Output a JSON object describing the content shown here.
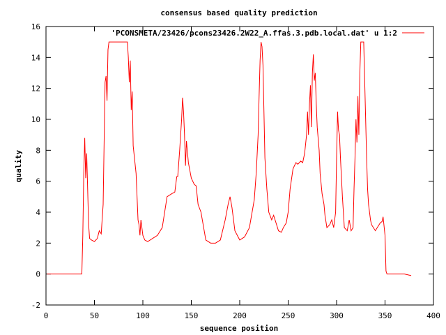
{
  "chart_data": {
    "type": "line",
    "title": "consensus based quality prediction",
    "xlabel": "sequence position",
    "ylabel": "quality",
    "xlim": [
      0,
      400
    ],
    "ylim": [
      -2,
      16
    ],
    "x_ticks": [
      0,
      50,
      100,
      150,
      200,
      250,
      300,
      350,
      400
    ],
    "y_ticks": [
      -2,
      0,
      2,
      4,
      6,
      8,
      10,
      12,
      14,
      16
    ],
    "grid": false,
    "legend_position": "top-right",
    "series": [
      {
        "name": "'PCONSMETA/23426/pcons23426.2W22_A.ffas.3.pdb.local.dat' u 1:2",
        "color": "#ff0000",
        "x": [
          1,
          37,
          38,
          39,
          40,
          41,
          42,
          43,
          44,
          45,
          47,
          50,
          53,
          55,
          57,
          59,
          60,
          61,
          62,
          63,
          64,
          65,
          66,
          67,
          70,
          75,
          80,
          84,
          85,
          86,
          87,
          88,
          89,
          90,
          93,
          95,
          96,
          97,
          98,
          100,
          102,
          105,
          110,
          115,
          120,
          125,
          130,
          133,
          135,
          136,
          138,
          140,
          141,
          142,
          143,
          144,
          145,
          147,
          150,
          153,
          155,
          157,
          160,
          165,
          170,
          175,
          180,
          185,
          188,
          190,
          192,
          195,
          200,
          205,
          210,
          215,
          217,
          219,
          220,
          221,
          222,
          223,
          224,
          225,
          226,
          228,
          230,
          233,
          235,
          238,
          240,
          243,
          245,
          248,
          250,
          252,
          255,
          258,
          260,
          263,
          265,
          267,
          269,
          270,
          271,
          272,
          273,
          274,
          275,
          276,
          277,
          278,
          279,
          280,
          282,
          283,
          285,
          287,
          288,
          290,
          293,
          295,
          297,
          299,
          300,
          301,
          302,
          303,
          304,
          306,
          308,
          311,
          313,
          315,
          317,
          318,
          319,
          320,
          321,
          322,
          323,
          324,
          325,
          326,
          327,
          328,
          329,
          330,
          331,
          332,
          333,
          335,
          336,
          338,
          340,
          342,
          345,
          347,
          348,
          350,
          351,
          352,
          353,
          360,
          370,
          377
        ],
        "y": [
          0,
          0,
          2.5,
          6.5,
          8.8,
          6.2,
          7.8,
          5.5,
          3.2,
          2.3,
          2.2,
          2.1,
          2.3,
          2.8,
          2.6,
          4.5,
          8.5,
          12.4,
          12.8,
          11.2,
          14.5,
          15,
          15,
          15,
          15,
          15,
          15,
          15,
          14,
          12.4,
          13.8,
          10.6,
          11.8,
          8.3,
          6.5,
          3.5,
          3.2,
          2.5,
          3.5,
          2.5,
          2.2,
          2.1,
          2.3,
          2.5,
          3.0,
          5.0,
          5.2,
          5.3,
          6.3,
          6.3,
          8.0,
          10.0,
          11.4,
          10.5,
          9.0,
          7.0,
          8.6,
          7.2,
          6.2,
          5.8,
          5.7,
          4.5,
          4.0,
          2.2,
          2.0,
          2.0,
          2.2,
          3.5,
          4.5,
          5.0,
          4.3,
          2.8,
          2.2,
          2.4,
          3.0,
          4.8,
          6.5,
          9.0,
          11.5,
          13.8,
          15,
          14.7,
          13.5,
          10.5,
          7.5,
          5.5,
          4.0,
          3.5,
          3.8,
          3.2,
          2.8,
          2.7,
          3.0,
          3.3,
          4.0,
          5.5,
          6.8,
          7.2,
          7.1,
          7.3,
          7.2,
          7.8,
          9.0,
          10.5,
          9.0,
          11.0,
          12.2,
          9.5,
          13.0,
          14.2,
          12.5,
          13.0,
          11.0,
          9.5,
          8.0,
          6.5,
          5.2,
          4.5,
          3.8,
          3.0,
          3.2,
          3.5,
          3.0,
          4.0,
          7.5,
          10.5,
          9.3,
          9.0,
          7.5,
          5.0,
          3.0,
          2.8,
          3.5,
          2.8,
          3.0,
          5.5,
          7.5,
          10.0,
          8.5,
          11.5,
          9.0,
          13.0,
          15,
          15,
          15,
          15,
          12.5,
          10.0,
          7.5,
          5.5,
          4.5,
          3.5,
          3.2,
          3.0,
          2.8,
          3.0,
          3.3,
          3.4,
          3.7,
          2.5,
          0.2,
          0,
          0,
          0,
          0,
          -0.1
        ]
      }
    ]
  }
}
